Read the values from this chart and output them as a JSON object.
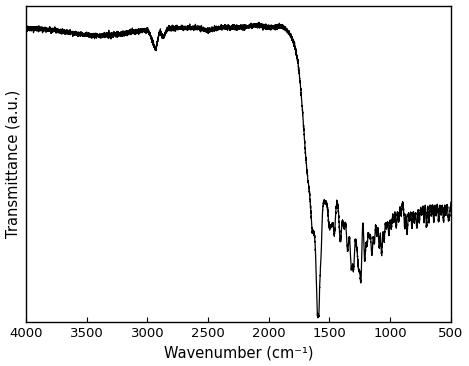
{
  "xmin": 500,
  "xmax": 4000,
  "xlabel": "Wavenumber (cm⁻¹)",
  "ylabel": "Transmittance (a.u.)",
  "line_color": "#000000",
  "line_width": 0.9,
  "background_color": "#ffffff",
  "xticks": [
    4000,
    3500,
    3000,
    2500,
    2000,
    1500,
    1000,
    500
  ],
  "baseline": 0.93,
  "ylim_min": 0.0,
  "ylim_max": 1.0
}
